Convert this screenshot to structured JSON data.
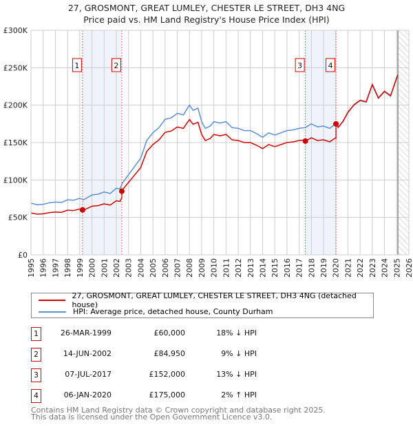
{
  "title": "27, GROSMONT, GREAT LUMLEY, CHESTER LE STREET, DH3 4NG",
  "subtitle": "Price paid vs. HM Land Registry's House Price Index (HPI)",
  "colors": {
    "property": "#cc0000",
    "hpi": "#5b8fd0",
    "shade": "#eef3fc",
    "grid": "#cccccc"
  },
  "legend": {
    "property": "27, GROSMONT, GREAT LUMLEY, CHESTER LE STREET, DH3 4NG (detached house)",
    "hpi": "HPI: Average price, detached house, County Durham"
  },
  "sales": [
    {
      "num": "1",
      "date": "26-MAR-1999",
      "price": "£60,000",
      "hpi_diff": "18% ↓ HPI",
      "t": 1999.23,
      "value": 60000
    },
    {
      "num": "2",
      "date": "14-JUN-2002",
      "price": "£84,950",
      "hpi_diff": "9% ↓ HPI",
      "t": 2002.45,
      "value": 84950
    },
    {
      "num": "3",
      "date": "07-JUL-2017",
      "price": "£152,000",
      "hpi_diff": "13% ↓ HPI",
      "t": 2017.51,
      "value": 152000
    },
    {
      "num": "4",
      "date": "06-JAN-2020",
      "price": "£175,000",
      "hpi_diff": "2% ↑ HPI",
      "t": 2020.02,
      "value": 175000
    }
  ],
  "footer": [
    "Contains HM Land Registry data © Crown copyright and database right 2025.",
    "This data is licensed under the Open Government Licence v3.0."
  ],
  "chart_data": {
    "type": "line",
    "title": "27, GROSMONT, GREAT LUMLEY, CHESTER LE STREET, DH3 4NG",
    "subtitle": "Price paid vs. HM Land Registry's House Price Index (HPI)",
    "xlim": [
      1995,
      2026
    ],
    "ylim": [
      0,
      300000
    ],
    "x_ticks": [
      "1995",
      "1996",
      "1997",
      "1998",
      "1999",
      "2000",
      "2001",
      "2002",
      "2003",
      "2004",
      "2005",
      "2006",
      "2007",
      "2008",
      "2009",
      "2010",
      "2011",
      "2012",
      "2013",
      "2014",
      "2015",
      "2016",
      "2017",
      "2018",
      "2019",
      "2020",
      "2021",
      "2022",
      "2023",
      "2024",
      "2025",
      "2026"
    ],
    "y_ticks": [
      {
        "v": 0,
        "label": "£0"
      },
      {
        "v": 50000,
        "label": "£50K"
      },
      {
        "v": 100000,
        "label": "£100K"
      },
      {
        "v": 150000,
        "label": "£150K"
      },
      {
        "v": 200000,
        "label": "£200K"
      },
      {
        "v": 250000,
        "label": "£250K"
      },
      {
        "v": 300000,
        "label": "£300K"
      }
    ],
    "grid": true,
    "forecast_hatch_from": 2025.1,
    "hpi_series": {
      "name": "HPI: Average price, detached house, County Durham",
      "x": [
        1995,
        1995.5,
        1996,
        1996.5,
        1997,
        1997.5,
        1998,
        1998.5,
        1999,
        1999.3,
        2000,
        2000.5,
        2001,
        2001.5,
        2002,
        2002.3,
        2002.5,
        2003,
        2003.5,
        2004,
        2004.5,
        2005,
        2005.5,
        2006,
        2006.5,
        2007,
        2007.5,
        2008,
        2008.3,
        2008.7,
        2009,
        2009.3,
        2009.7,
        2010,
        2010.5,
        2011,
        2011.5,
        2012,
        2012.5,
        2013,
        2013.5,
        2014,
        2014.5,
        2015,
        2015.5,
        2016,
        2016.5,
        2017,
        2017.5,
        2018,
        2018.5,
        2019,
        2019.5,
        2020,
        2020.2,
        2020.6,
        2021,
        2021.5,
        2022,
        2022.5,
        2023,
        2023.5,
        2024,
        2024.5,
        2025,
        2025.1
      ],
      "y": [
        69000,
        67000,
        67500,
        69500,
        70500,
        70000,
        73500,
        73000,
        75500,
        73500,
        80000,
        81000,
        84000,
        82000,
        89000,
        88000,
        96000,
        107000,
        118000,
        129000,
        153000,
        163000,
        170000,
        181000,
        183000,
        189000,
        187000,
        200000,
        193000,
        196000,
        178000,
        169000,
        172000,
        178000,
        176000,
        178000,
        170000,
        169000,
        166000,
        166000,
        162000,
        157000,
        163000,
        160000,
        163000,
        166000,
        167000,
        169000,
        170000,
        175000,
        171000,
        172000,
        169000,
        175000,
        170000,
        178000,
        190000,
        200000,
        206000,
        204000,
        227000,
        209000,
        218000,
        212000,
        236000,
        240000
      ]
    },
    "property_series": {
      "name": "27, GROSMONT, GREAT LUMLEY, CHESTER LE STREET, DH3 4NG (detached house)",
      "derived_from": "hpi_series indexed to each sale"
    }
  }
}
